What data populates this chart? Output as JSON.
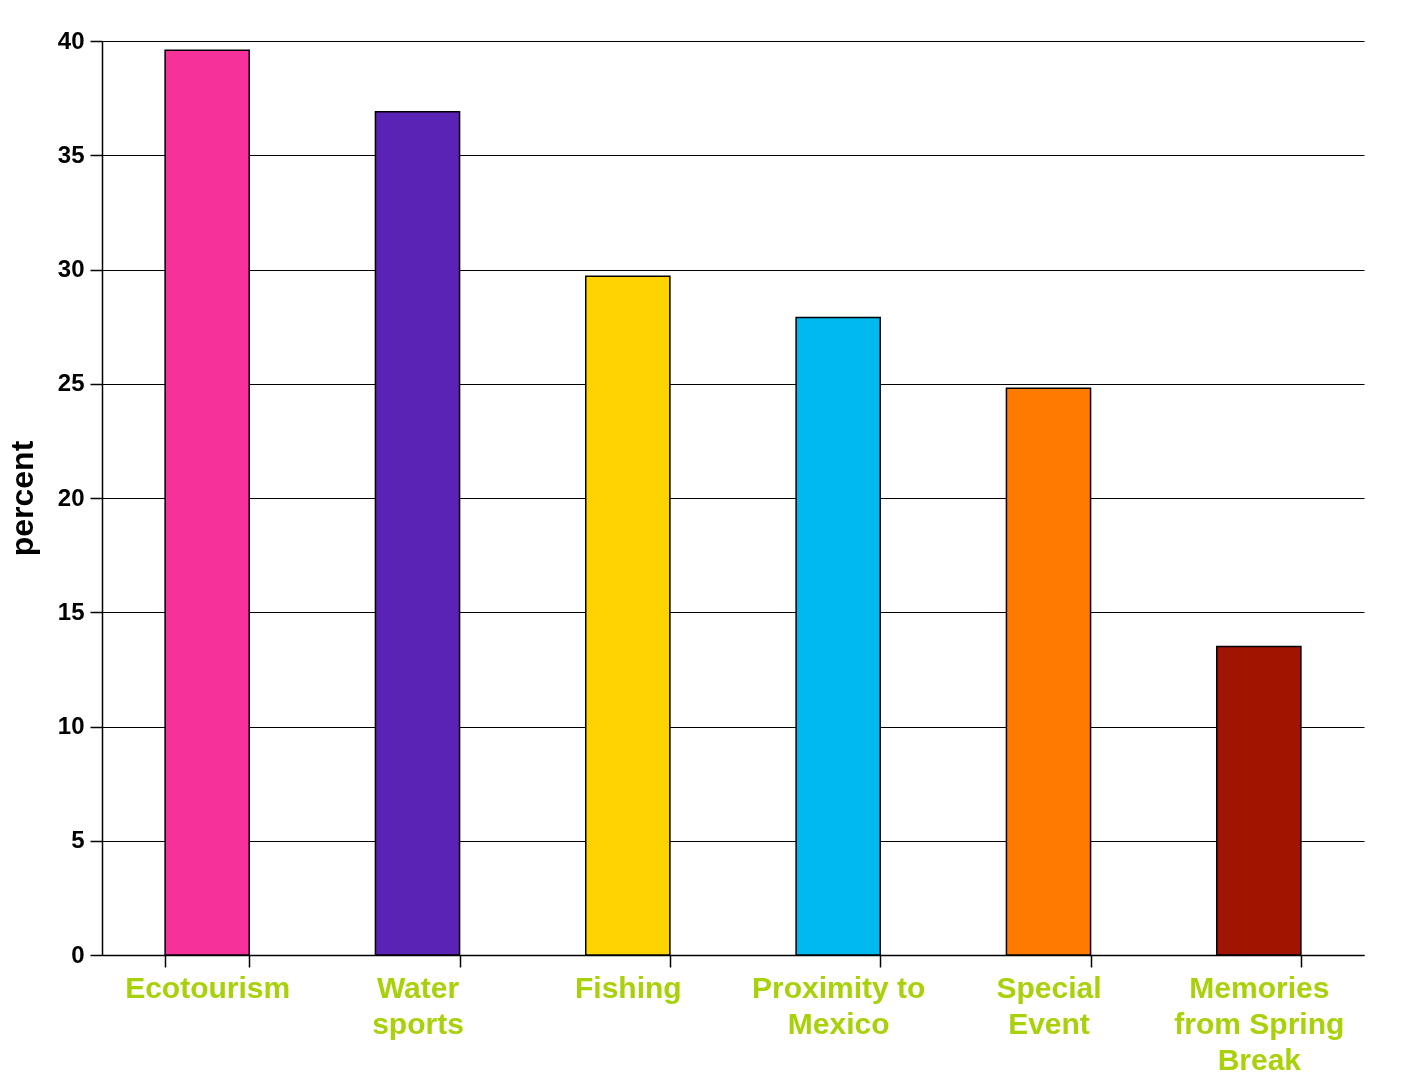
{
  "chart_data": {
    "type": "bar",
    "ylabel": "percent",
    "categories": [
      "Ecotourism",
      "Water sports",
      "Fishing",
      "Proximity to Mexico",
      "Special Event",
      "Memories from Spring Break"
    ],
    "values": [
      39.6,
      36.9,
      29.7,
      27.9,
      24.8,
      13.5
    ],
    "colors": [
      "#f7319a",
      "#5a22b5",
      "#ffd300",
      "#00b9ef",
      "#ff7b00",
      "#a11400"
    ],
    "ylim": [
      0,
      40
    ],
    "yticks": [
      0,
      5,
      10,
      15,
      20,
      25,
      30,
      35,
      40
    ],
    "grid": "y"
  }
}
